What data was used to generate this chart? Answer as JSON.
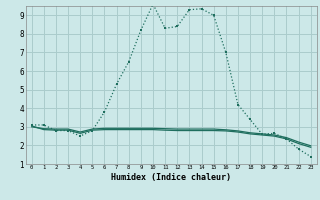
{
  "xlabel": "Humidex (Indice chaleur)",
  "xlim": [
    -0.5,
    23.5
  ],
  "ylim": [
    1,
    9.5
  ],
  "yticks": [
    1,
    2,
    3,
    4,
    5,
    6,
    7,
    8,
    9
  ],
  "xticks": [
    0,
    1,
    2,
    3,
    4,
    5,
    6,
    7,
    8,
    9,
    10,
    11,
    12,
    13,
    14,
    15,
    16,
    17,
    18,
    19,
    20,
    21,
    22,
    23
  ],
  "background_color": "#cce8e8",
  "grid_color": "#aacccc",
  "line_color": "#1e6e5e",
  "line1_x": [
    0,
    1,
    2,
    3,
    4,
    5,
    6,
    7,
    8,
    9,
    10,
    11,
    12,
    13,
    14,
    15,
    16,
    17,
    18,
    19,
    20,
    21,
    22,
    23
  ],
  "line1_y": [
    3.1,
    3.1,
    2.8,
    2.8,
    2.5,
    2.8,
    3.8,
    5.3,
    6.5,
    8.2,
    9.6,
    8.3,
    8.4,
    9.3,
    9.35,
    9.0,
    7.0,
    4.2,
    3.4,
    2.6,
    2.65,
    2.35,
    1.8,
    1.4
  ],
  "line2_x": [
    0,
    1,
    2,
    3,
    4,
    5,
    6,
    7,
    8,
    9,
    10,
    11,
    12,
    13,
    14,
    15,
    16,
    17,
    18,
    19,
    20,
    21,
    22,
    23
  ],
  "line2_y": [
    3.05,
    2.85,
    2.82,
    2.82,
    2.65,
    2.82,
    2.85,
    2.85,
    2.85,
    2.85,
    2.85,
    2.82,
    2.8,
    2.8,
    2.8,
    2.8,
    2.78,
    2.72,
    2.62,
    2.56,
    2.5,
    2.35,
    2.1,
    1.9
  ],
  "line3_x": [
    0,
    1,
    2,
    3,
    4,
    5,
    6,
    7,
    8,
    9,
    10,
    11,
    12,
    13,
    14,
    15,
    16,
    17,
    18,
    19,
    20,
    21,
    22,
    23
  ],
  "line3_y": [
    3.0,
    2.9,
    2.88,
    2.88,
    2.72,
    2.88,
    2.92,
    2.92,
    2.92,
    2.92,
    2.92,
    2.9,
    2.88,
    2.88,
    2.88,
    2.88,
    2.84,
    2.78,
    2.68,
    2.62,
    2.56,
    2.42,
    2.18,
    1.98
  ]
}
